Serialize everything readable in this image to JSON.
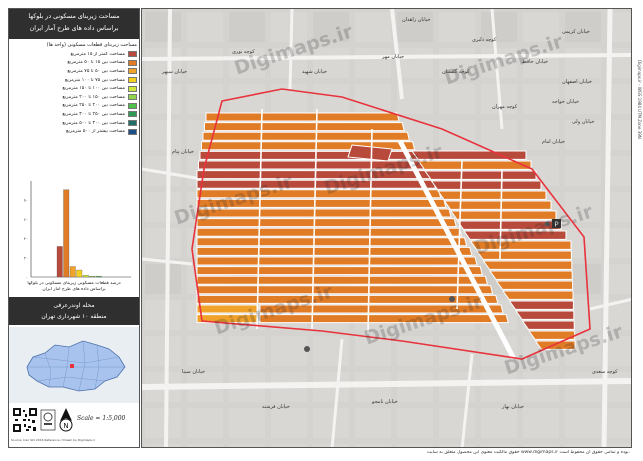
{
  "title": {
    "line1": "مساحت زیربنای مسکونی در بلوکها",
    "line2": "براساس داده های طرح آمار ایران",
    "line3": "(۱۳۹۵)"
  },
  "legend": {
    "heading": "مساحت زیربنای قطعات مسکونی (واحد ها)",
    "items": [
      {
        "label": "مساحت کمتر از ۱۵ مترمربع",
        "color": "#b84a3b"
      },
      {
        "label": "مساحت بین ۱۵ تا ۵۰ مترمربع",
        "color": "#e07b26"
      },
      {
        "label": "مساحت بین ۵۰ تا ۷۵ مترمربع",
        "color": "#f0a22a"
      },
      {
        "label": "مساحت بین ۷۵ تا ۱۰۰ مترمربع",
        "color": "#f3d11e"
      },
      {
        "label": "مساحت بین ۱۰۰ تا ۱۵۰ مترمربع",
        "color": "#cfe73b"
      },
      {
        "label": "مساحت بین ۱۵۰ تا ۲۰۰ مترمربع",
        "color": "#8fd64a"
      },
      {
        "label": "مساحت بین ۲۰۰ تا ۲۵۰ مترمربع",
        "color": "#4cc24a"
      },
      {
        "label": "مساحت بین ۲۵۰ تا ۳۰۰ مترمربع",
        "color": "#2d9a55"
      },
      {
        "label": "مساحت بین ۳۰۰ تا ۵۰۰ مترمربع",
        "color": "#1f6f67"
      },
      {
        "label": "مساحت بیشتر از ۵۰۰ مترمربع",
        "color": "#1b4f86"
      }
    ]
  },
  "chart_data": {
    "type": "bar",
    "title": "",
    "xlabel": "",
    "ylabel": "",
    "categories": [
      "1",
      "2",
      "3",
      "4",
      "5",
      "6",
      "7",
      "8",
      "9",
      "10"
    ],
    "colors": [
      "#b84a3b",
      "#e07b26",
      "#f0a22a",
      "#f3d11e",
      "#cfe73b",
      "#8fd64a",
      "#4cc24a",
      "#2d9a55",
      "#1f6f67",
      "#1b4f86"
    ],
    "values": [
      35,
      100,
      12,
      8,
      2,
      1,
      1,
      0,
      0,
      0
    ],
    "y_ticks": [
      "۸۰",
      "۶۰",
      "۴۰",
      "۲۰",
      "۰"
    ],
    "ylim": [
      0,
      110
    ],
    "caption1": "درصد قطعات مسکونی زیربنای مسکونی در بلوکها",
    "caption2": "براساس داده های طرح آمار ایران"
  },
  "region": {
    "line1": "محله اوندرعرفی",
    "line2": "منطقه ۱۰ شهرداری تهران"
  },
  "scale": "Scale = 1:5,000",
  "source": "Source: Iran SCI 2016 Reference / Drawn by Digimaps.ir",
  "copyright": "حقوق مالکیت معنوی این محصول متعلق به سایت www.digimaps.ir بوده و تمامی حقوق آن محفوظ است.",
  "watermark": "Digimaps.ir",
  "side_note": "Digimaps.ir - WGS 1984 UTM Zone 39N",
  "colors": {
    "boundary": "#e8323c",
    "block_dark": "#b84a3b",
    "block_main": "#e07b26",
    "block_light": "#f0a22a",
    "street": "#ffffff",
    "ground": "#d5d3d0",
    "inset_city": "#a8c4ee"
  },
  "streets": [
    "خیابان زاهدان",
    "کوچه دلبری",
    "خیابان کریمی",
    "خیابان مهر",
    "خیابان حافظ",
    "خیابان اصفهان",
    "خیابان خواجه",
    "کوچه مهران",
    "خیابان ولی",
    "خیابان امام",
    "خیابان سپهر",
    "کوچه نوری",
    "خیابان پیام",
    "خیابان سینا",
    "خیابان فرشته",
    "خیابان نامجو",
    "خیابان بهار",
    "کوچه سعدی",
    "خیابان شهید",
    "کوچه گلستان"
  ]
}
